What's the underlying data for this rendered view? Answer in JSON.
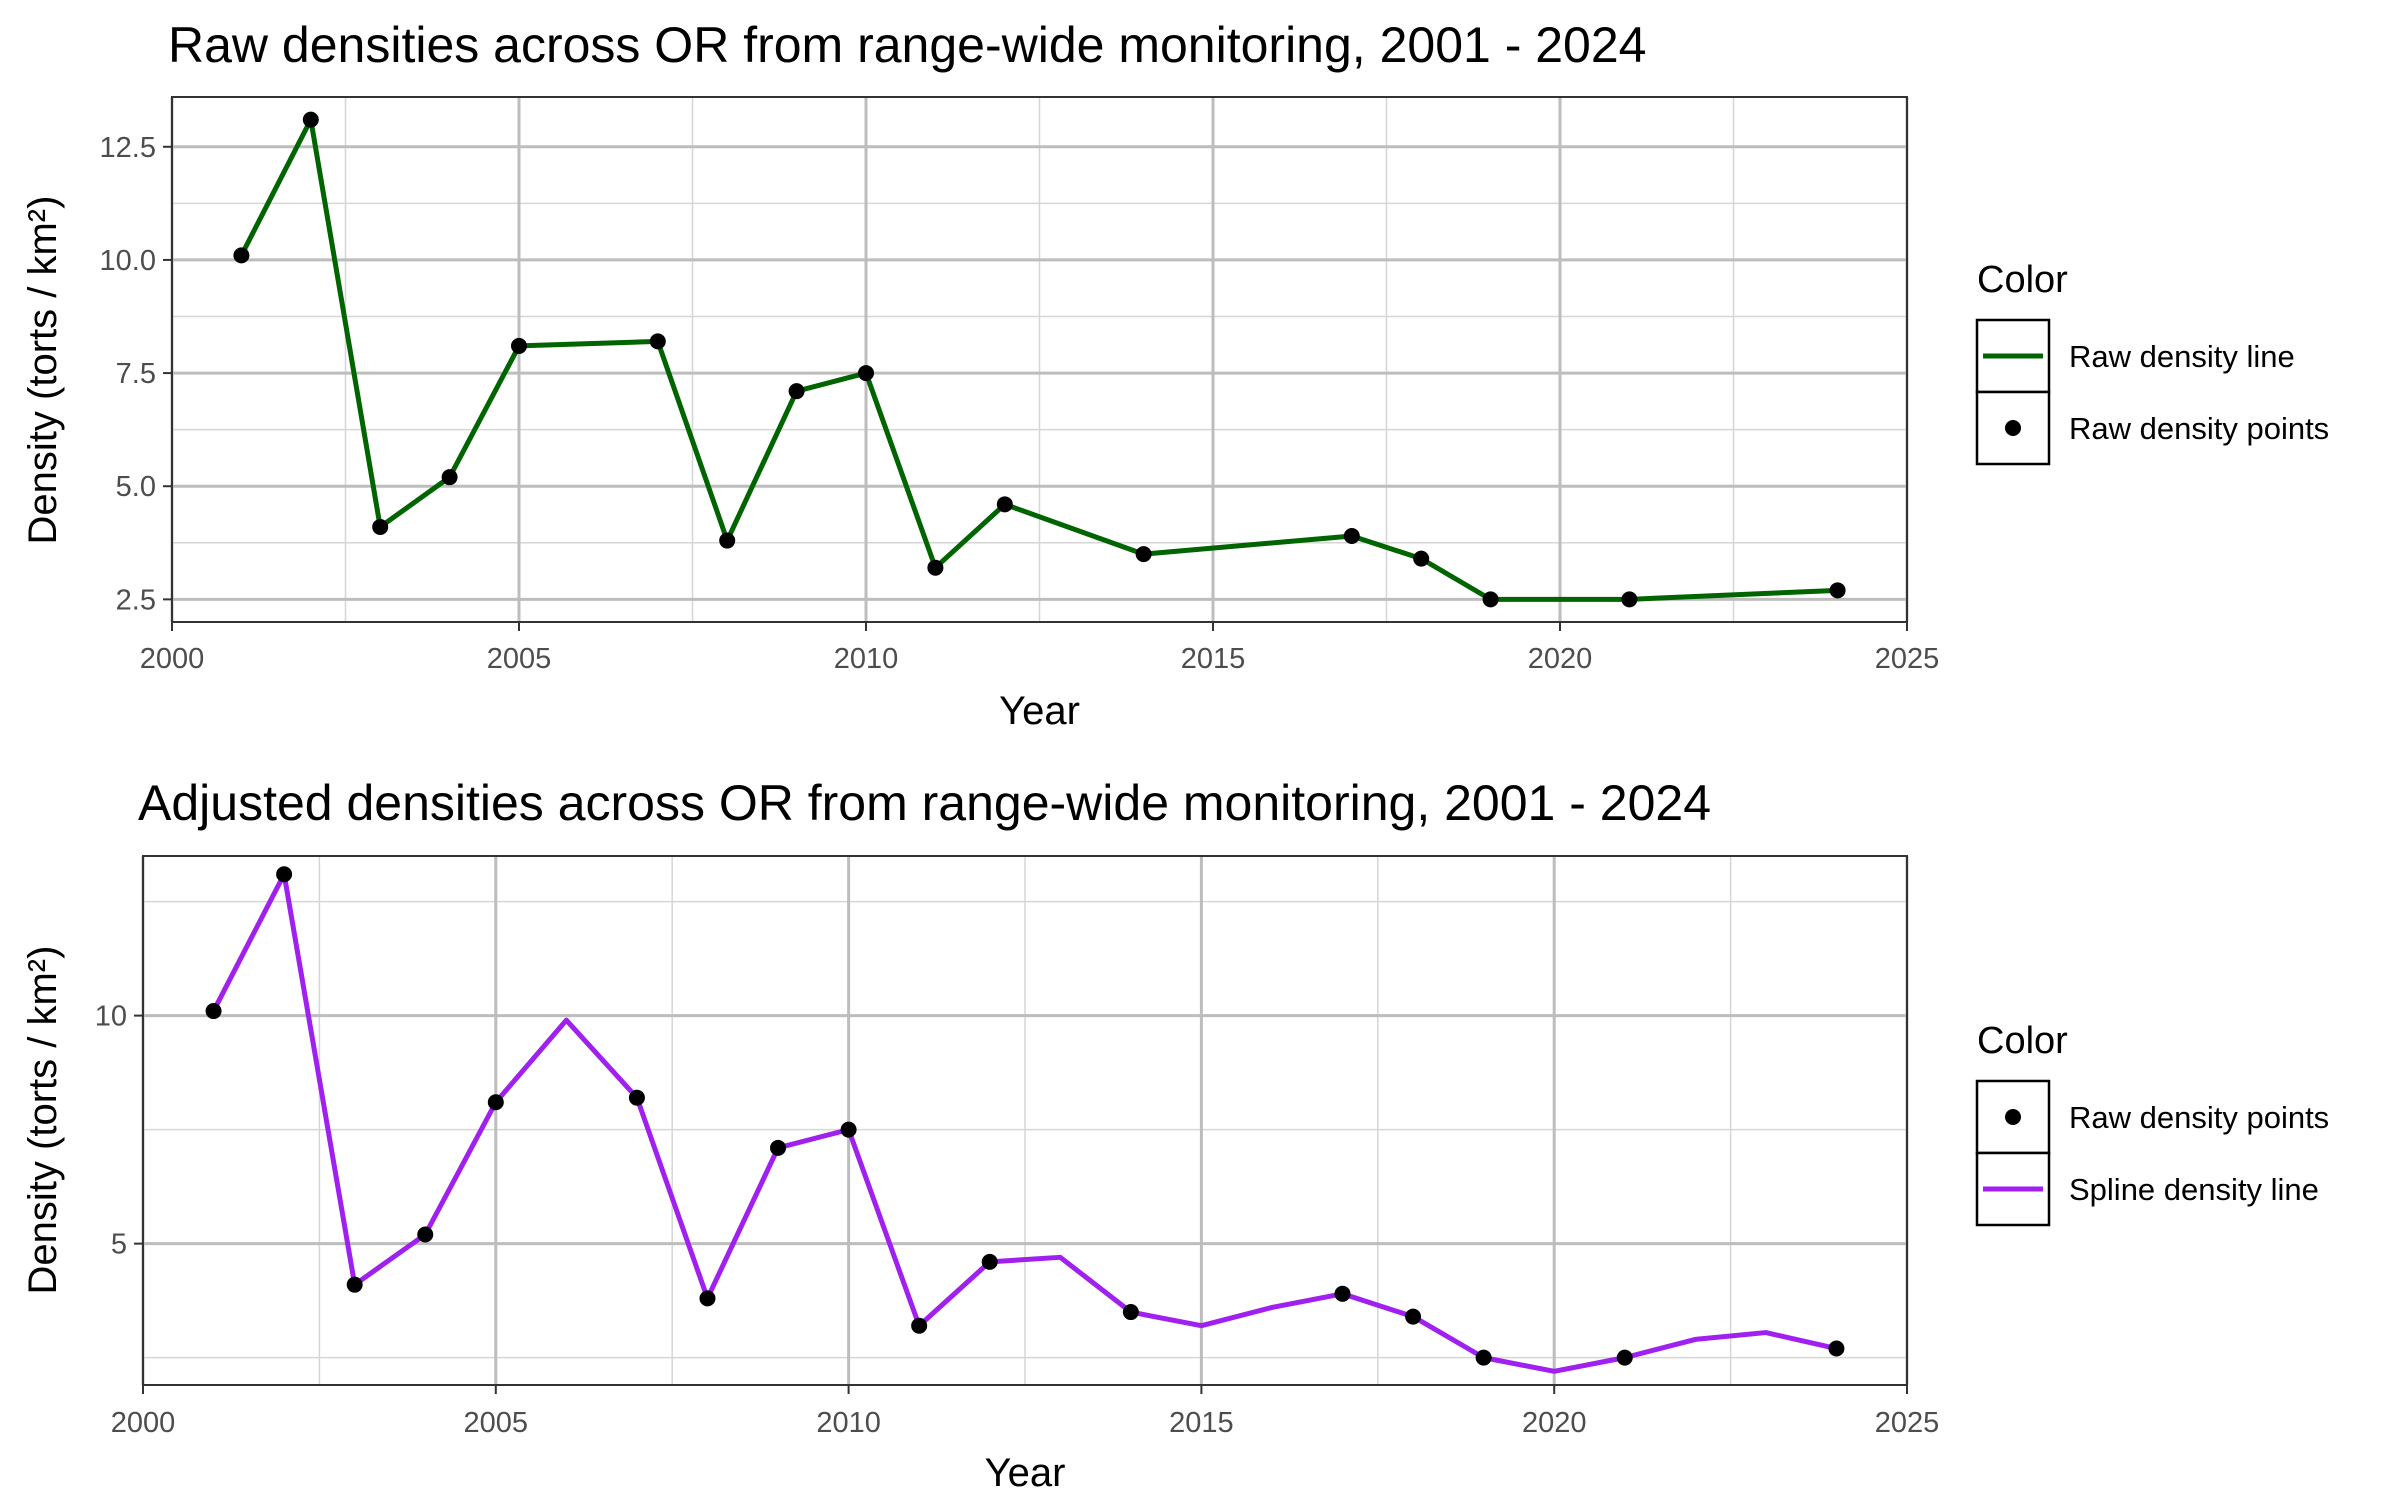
{
  "chart_data": [
    {
      "type": "line",
      "title": "Raw densities across OR from range-wide monitoring, 2001 - 2024",
      "xlabel": "Year",
      "ylabel": "Density (torts / km²)",
      "xlim": [
        2000,
        2025
      ],
      "ylim": [
        2.0,
        13.6
      ],
      "x_ticks": [
        2000,
        2005,
        2010,
        2015,
        2020,
        2025
      ],
      "x_tick_labels": [
        "2000",
        "2005",
        "2010",
        "2015",
        "2020",
        "2025"
      ],
      "y_ticks": [
        2.5,
        5.0,
        7.5,
        10.0,
        12.5
      ],
      "y_tick_labels": [
        "2.5",
        "5.0",
        "7.5",
        "10.0",
        "12.5"
      ],
      "grid": true,
      "legend": {
        "title": "Color",
        "placement": "right",
        "entries": [
          {
            "label": "Raw density line",
            "kind": "line",
            "color": "#006400"
          },
          {
            "label": "Raw density points",
            "kind": "point",
            "color": "#000000"
          }
        ]
      },
      "series": [
        {
          "name": "Raw density line",
          "kind": "line",
          "color": "#006400",
          "x": [
            2001,
            2002,
            2003,
            2004,
            2005,
            2007,
            2008,
            2009,
            2010,
            2011,
            2012,
            2014,
            2017,
            2018,
            2019,
            2021,
            2024
          ],
          "y": [
            10.1,
            13.1,
            4.1,
            5.2,
            8.1,
            8.2,
            3.8,
            7.1,
            7.5,
            3.2,
            4.6,
            3.5,
            3.9,
            3.4,
            2.5,
            2.5,
            2.7
          ]
        },
        {
          "name": "Raw density points",
          "kind": "point",
          "color": "#000000",
          "x": [
            2001,
            2002,
            2003,
            2004,
            2005,
            2007,
            2008,
            2009,
            2010,
            2011,
            2012,
            2014,
            2017,
            2018,
            2019,
            2021,
            2024
          ],
          "y": [
            10.1,
            13.1,
            4.1,
            5.2,
            8.1,
            8.2,
            3.8,
            7.1,
            7.5,
            3.2,
            4.6,
            3.5,
            3.9,
            3.4,
            2.5,
            2.5,
            2.7
          ]
        }
      ]
    },
    {
      "type": "line",
      "title": "Adjusted densities across OR from range-wide monitoring, 2001 - 2024",
      "xlabel": "Year",
      "ylabel": "Density (torts / km²)",
      "xlim": [
        2000,
        2025
      ],
      "ylim": [
        1.9,
        13.5
      ],
      "x_ticks": [
        2000,
        2005,
        2010,
        2015,
        2020,
        2025
      ],
      "x_tick_labels": [
        "2000",
        "2005",
        "2010",
        "2015",
        "2020",
        "2025"
      ],
      "y_ticks": [
        5,
        10
      ],
      "y_tick_labels": [
        "5",
        "10"
      ],
      "grid": true,
      "legend": {
        "title": "Color",
        "placement": "right",
        "entries": [
          {
            "label": "Raw density points",
            "kind": "point",
            "color": "#000000"
          },
          {
            "label": "Spline density line",
            "kind": "line",
            "color": "#A020F0"
          }
        ]
      },
      "series": [
        {
          "name": "Spline density line",
          "kind": "line",
          "color": "#A020F0",
          "x": [
            2001,
            2002,
            2003,
            2004,
            2005,
            2006,
            2007,
            2008,
            2009,
            2010,
            2011,
            2012,
            2013,
            2014,
            2015,
            2016,
            2017,
            2018,
            2019,
            2020,
            2021,
            2022,
            2023,
            2024
          ],
          "y": [
            10.1,
            13.1,
            4.1,
            5.2,
            8.1,
            9.9,
            8.2,
            3.8,
            7.1,
            7.5,
            3.2,
            4.6,
            4.7,
            3.5,
            3.2,
            3.6,
            3.9,
            3.4,
            2.5,
            2.2,
            2.5,
            2.9,
            3.05,
            2.7
          ]
        },
        {
          "name": "Raw density points",
          "kind": "point",
          "color": "#000000",
          "x": [
            2001,
            2002,
            2003,
            2004,
            2005,
            2007,
            2008,
            2009,
            2010,
            2011,
            2012,
            2014,
            2017,
            2018,
            2019,
            2021,
            2024
          ],
          "y": [
            10.1,
            13.1,
            4.1,
            5.2,
            8.1,
            8.2,
            3.8,
            7.1,
            7.5,
            3.2,
            4.6,
            3.5,
            3.9,
            3.4,
            2.5,
            2.5,
            2.7
          ]
        }
      ]
    }
  ]
}
